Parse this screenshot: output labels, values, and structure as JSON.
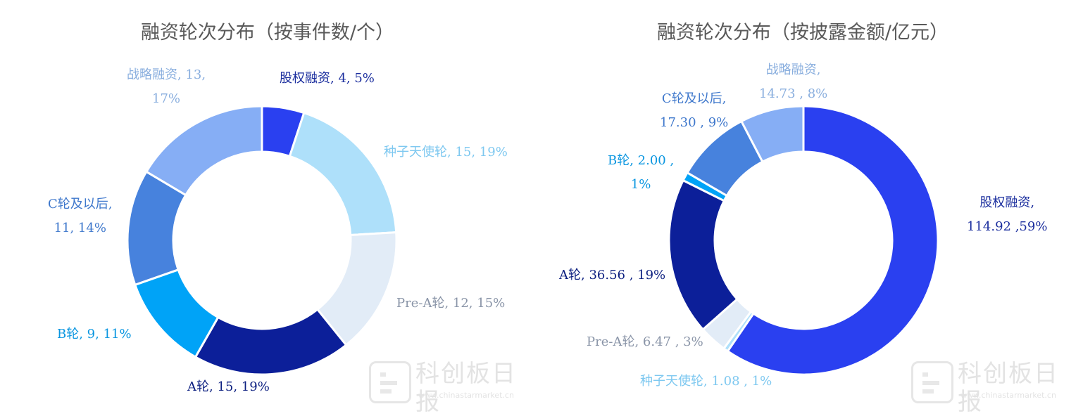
{
  "colors": {
    "title": "#595959",
    "equity": "#2a40f0",
    "seed": "#aee0fa",
    "preA": "#e2ecf7",
    "roundA": "#0c1f99",
    "roundB": "#00a3f7",
    "roundC": "#4782dd",
    "strategic": "#86aef5"
  },
  "chart_data": [
    {
      "type": "pie",
      "title": "融资轮次分布（按事件数/个）",
      "donut": true,
      "slices": [
        {
          "name": "股权融资",
          "value": 4,
          "percent": "5%",
          "label_lines": [
            "股权融资, 4, 5%"
          ],
          "color": "#2a40f0",
          "label_color": "#1b2e9e"
        },
        {
          "name": "种子天使轮",
          "value": 15,
          "percent": "19%",
          "label_lines": [
            "种子天使轮, 15, 19%"
          ],
          "color": "#aee0fa",
          "label_color": "#7ec8f0"
        },
        {
          "name": "Pre-A轮",
          "value": 12,
          "percent": "15%",
          "label_lines": [
            "Pre-A轮, 12, 15%"
          ],
          "color": "#e2ecf7",
          "label_color": "#8a95a8"
        },
        {
          "name": "A轮",
          "value": 15,
          "percent": "19%",
          "label_lines": [
            "A轮, 15, 19%"
          ],
          "color": "#0c1f99",
          "label_color": "#0c1f80"
        },
        {
          "name": "B轮",
          "value": 9,
          "percent": "11%",
          "label_lines": [
            "B轮, 9, 11%"
          ],
          "color": "#00a3f7",
          "label_color": "#0a96e0"
        },
        {
          "name": "C轮及以后",
          "value": 11,
          "percent": "14%",
          "label_lines": [
            "C轮及以后,",
            "11, 14%"
          ],
          "color": "#4782dd",
          "label_color": "#3f78cc"
        },
        {
          "name": "战略融资",
          "value": 13,
          "percent": "17%",
          "label_lines": [
            "战略融资, 13,",
            "17%"
          ],
          "color": "#86aef5",
          "label_color": "#89aede"
        }
      ]
    },
    {
      "type": "pie",
      "title": "融资轮次分布（按披露金额/亿元）",
      "donut": true,
      "slices": [
        {
          "name": "股权融资",
          "value": 114.92,
          "percent": "59%",
          "label_lines": [
            "股权融资,",
            "114.92 ,59%"
          ],
          "color": "#2a40f0",
          "label_color": "#1b2e9e"
        },
        {
          "name": "种子天使轮",
          "value": 1.08,
          "percent": "1%",
          "label_lines": [
            "种子天使轮, 1.08 , 1%"
          ],
          "color": "#aee0fa",
          "label_color": "#7ec8f0"
        },
        {
          "name": "Pre-A轮",
          "value": 6.47,
          "percent": "3%",
          "label_lines": [
            "Pre-A轮, 6.47 , 3%"
          ],
          "color": "#e2ecf7",
          "label_color": "#8a95a8"
        },
        {
          "name": "A轮",
          "value": 36.56,
          "percent": "19%",
          "label_lines": [
            "A轮, 36.56 , 19%"
          ],
          "color": "#0c1f99",
          "label_color": "#0c1f80"
        },
        {
          "name": "B轮",
          "value": 2.0,
          "percent": "1%",
          "label_lines": [
            "B轮, 2.00 ,",
            "1%"
          ],
          "color": "#00a3f7",
          "label_color": "#0a96e0"
        },
        {
          "name": "C轮及以后",
          "value": 17.3,
          "percent": "9%",
          "label_lines": [
            "C轮及以后,",
            "17.30 , 9%"
          ],
          "color": "#4782dd",
          "label_color": "#3f78cc"
        },
        {
          "name": "战略融资",
          "value": 14.73,
          "percent": "8%",
          "label_lines": [
            "战略融资,",
            "14.73 , 8%"
          ],
          "color": "#86aef5",
          "label_color": "#89aede"
        }
      ]
    }
  ],
  "watermark": {
    "name": "科创板日报",
    "url": "www.chinastarmarket.cn"
  }
}
